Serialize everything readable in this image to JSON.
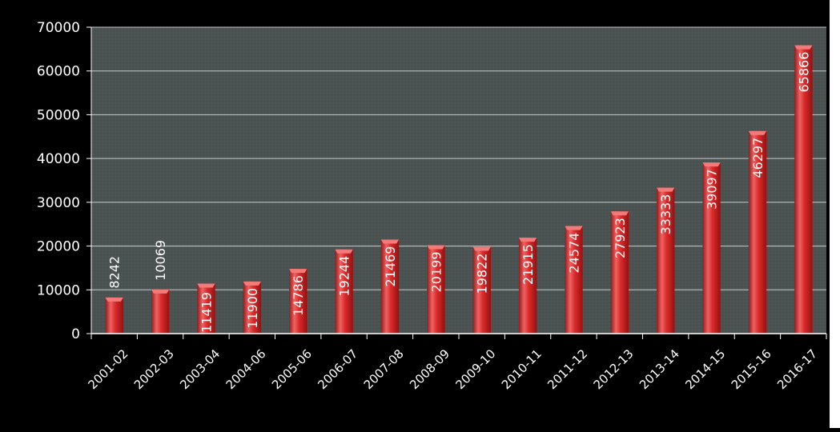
{
  "chart_data": {
    "type": "bar",
    "title": "",
    "xlabel": "",
    "ylabel": "",
    "categories": [
      "2001-02",
      "2002-03",
      "2003-04",
      "2004-06",
      "2005-06",
      "2006-07",
      "2007-08",
      "2008-09",
      "2009-10",
      "2010-11",
      "2011-12",
      "2012-13",
      "2013-14",
      "2014-15",
      "2015-16",
      "2016-17"
    ],
    "values": [
      8242,
      10069,
      11419,
      11900,
      14786,
      19244,
      21469,
      20199,
      19822,
      21915,
      24574,
      27923,
      33333,
      39097,
      46297,
      65866
    ],
    "data_labels": [
      "8242",
      "10069",
      "11419",
      "11900",
      "14786",
      "19244",
      "21469",
      "20199",
      "19822",
      "21915",
      "24574",
      "27923",
      "33333",
      "39097",
      "46297",
      "65866"
    ],
    "yticks": [
      0,
      10000,
      20000,
      30000,
      40000,
      50000,
      60000,
      70000
    ],
    "ytick_labels": [
      "0",
      "10000",
      "20000",
      "30000",
      "40000",
      "50000",
      "60000",
      "70000"
    ],
    "ylim": [
      0,
      70000
    ],
    "grid": true,
    "legend": "none",
    "colors": {
      "background": "#000000",
      "plot_area": "#4a5252",
      "gridline": "#c8cccc",
      "bar": "#d42525",
      "bar_highlight": "#f26a6a",
      "bar_shadow": "#8a1414",
      "text": "#ffffff"
    }
  }
}
